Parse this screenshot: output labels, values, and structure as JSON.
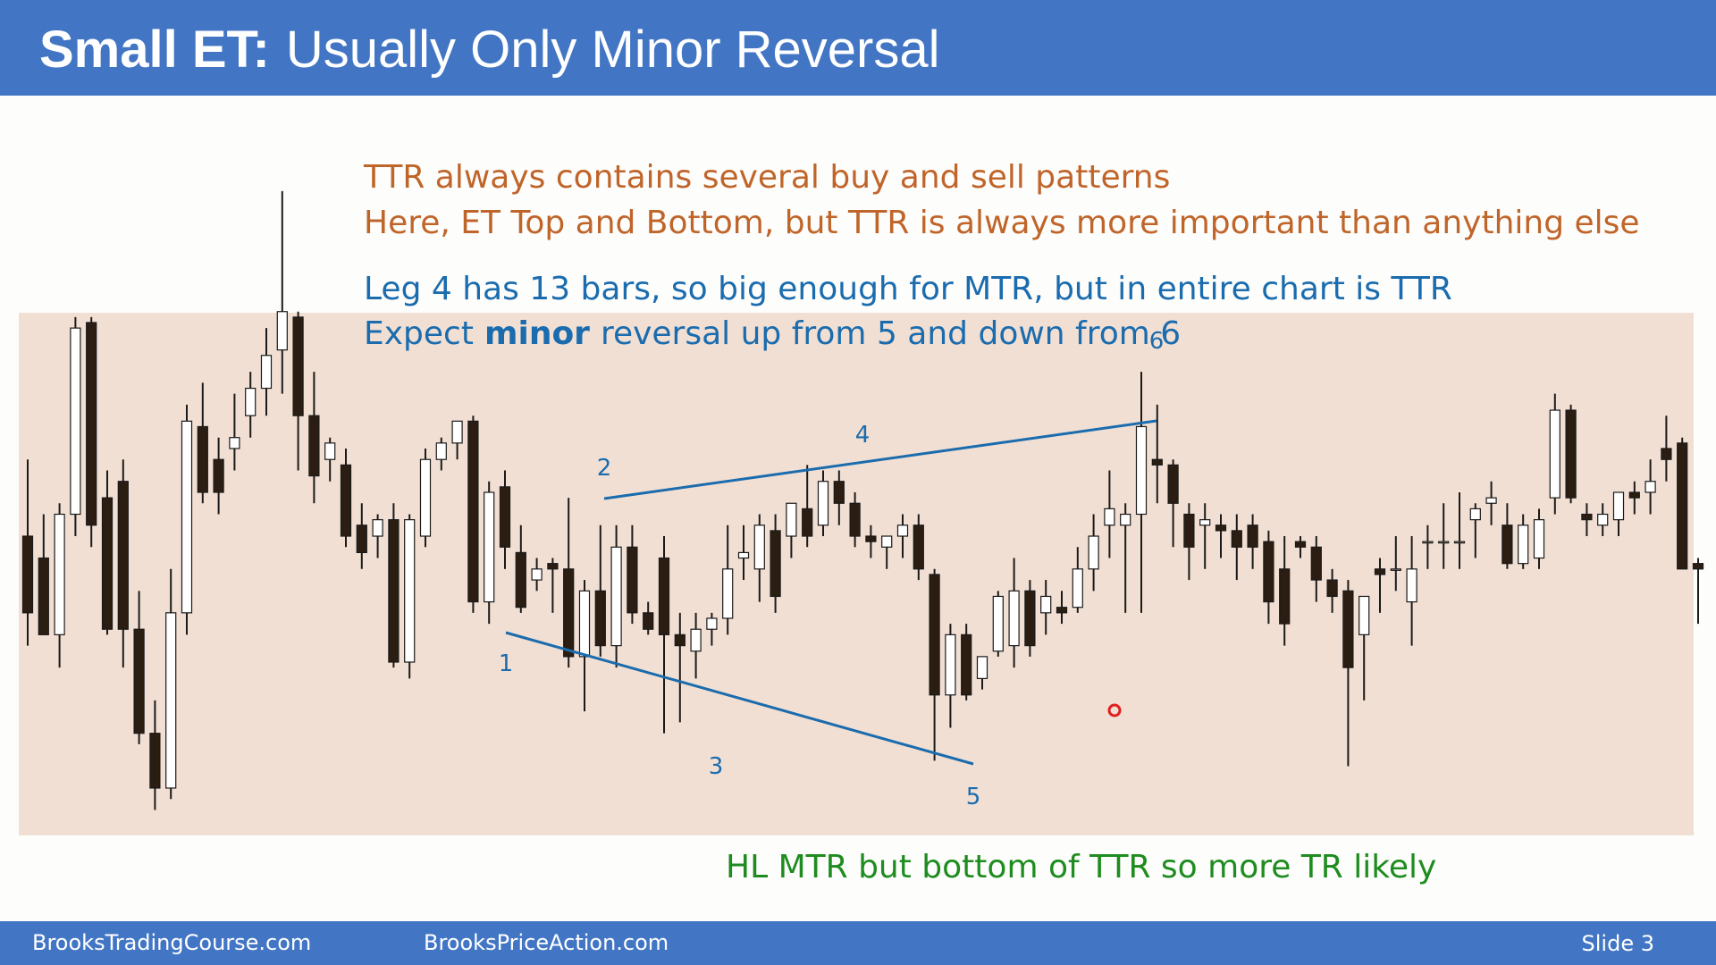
{
  "header": {
    "title_lead": "Small ET:",
    "title": "Usually Only Minor Reversal"
  },
  "notes": {
    "orange": [
      "TTR always contains several buy and sell patterns",
      "Here, ET Top and Bottom, but TTR is always more important than anything else"
    ],
    "blue_1": "Leg 4 has 13 bars, so big enough for MTR, but in entire chart is TTR",
    "blue_2": [
      "Expect",
      "minor",
      "reversal up from 5 and down from 6"
    ]
  },
  "labels": [
    "1",
    "2",
    "3",
    "4",
    "5",
    "6"
  ],
  "conclusion": "HL MTR but bottom of TTR so more TR likely",
  "footer": {
    "left": "BrooksTradingCourse.com",
    "middle": "BrooksPriceAction.com",
    "slide": "Slide 3"
  },
  "chart_data": {
    "type": "candlestick",
    "ylim": [
      0,
      620
    ],
    "color_up": "#ffffff",
    "color_down": "#2b1d12",
    "background": "#f2dfd3",
    "open": [
      270,
      250,
      180,
      290,
      465,
      305,
      320,
      185,
      90,
      40,
      200,
      370,
      340,
      350,
      380,
      405,
      440,
      470,
      380,
      340,
      335,
      280,
      270,
      285,
      155,
      270,
      340,
      355,
      375,
      210,
      315,
      255,
      230,
      245,
      240,
      160,
      220,
      170,
      260,
      200,
      250,
      180,
      165,
      185,
      195,
      250,
      240,
      275,
      270,
      295,
      280,
      320,
      300,
      270,
      260,
      270,
      280,
      235,
      125,
      180,
      140,
      165,
      170,
      220,
      200,
      205,
      205,
      240,
      280,
      280,
      290,
      340,
      335,
      290,
      280,
      280,
      275,
      280,
      265,
      240,
      265,
      260,
      230,
      220,
      180,
      240,
      240,
      210,
      265,
      265,
      265,
      285,
      300,
      280,
      245,
      250,
      305,
      385,
      290,
      280,
      285,
      310,
      310,
      350,
      355,
      245
    ],
    "high": [
      340,
      290,
      300,
      470,
      470,
      330,
      340,
      220,
      120,
      240,
      390,
      410,
      360,
      400,
      420,
      460,
      585,
      475,
      420,
      360,
      350,
      300,
      290,
      300,
      290,
      350,
      360,
      375,
      380,
      320,
      330,
      280,
      250,
      250,
      305,
      230,
      280,
      280,
      280,
      210,
      270,
      200,
      200,
      200,
      280,
      280,
      290,
      290,
      300,
      335,
      330,
      330,
      310,
      280,
      270,
      290,
      290,
      240,
      190,
      190,
      160,
      220,
      250,
      230,
      230,
      220,
      260,
      290,
      330,
      300,
      420,
      390,
      340,
      300,
      300,
      290,
      290,
      290,
      275,
      270,
      270,
      270,
      240,
      230,
      215,
      250,
      270,
      270,
      280,
      300,
      310,
      300,
      320,
      300,
      290,
      295,
      400,
      390,
      300,
      300,
      310,
      320,
      340,
      380,
      360,
      250
    ],
    "low": [
      170,
      180,
      150,
      270,
      260,
      180,
      150,
      80,
      20,
      30,
      180,
      300,
      290,
      330,
      360,
      380,
      400,
      330,
      300,
      320,
      260,
      240,
      250,
      150,
      140,
      260,
      330,
      340,
      200,
      190,
      240,
      200,
      220,
      200,
      150,
      110,
      160,
      150,
      190,
      180,
      90,
      100,
      140,
      170,
      180,
      230,
      210,
      200,
      250,
      260,
      270,
      280,
      260,
      250,
      240,
      250,
      230,
      65,
      95,
      120,
      130,
      160,
      150,
      160,
      180,
      190,
      200,
      220,
      250,
      200,
      200,
      300,
      260,
      230,
      240,
      250,
      230,
      240,
      190,
      170,
      250,
      210,
      200,
      60,
      120,
      200,
      220,
      170,
      240,
      240,
      240,
      250,
      280,
      240,
      240,
      240,
      290,
      300,
      270,
      270,
      270,
      290,
      290,
      320,
      240,
      190
    ],
    "close": [
      200,
      180,
      290,
      460,
      280,
      185,
      185,
      90,
      40,
      200,
      375,
      310,
      310,
      360,
      405,
      435,
      475,
      380,
      325,
      355,
      270,
      255,
      285,
      155,
      285,
      340,
      355,
      375,
      210,
      310,
      260,
      205,
      240,
      240,
      160,
      220,
      170,
      260,
      200,
      185,
      180,
      170,
      185,
      195,
      240,
      255,
      280,
      215,
      300,
      270,
      320,
      300,
      270,
      265,
      270,
      280,
      240,
      125,
      180,
      125,
      160,
      215,
      220,
      170,
      215,
      200,
      240,
      270,
      295,
      290,
      370,
      335,
      300,
      260,
      285,
      275,
      260,
      260,
      210,
      190,
      260,
      230,
      215,
      150,
      215,
      235,
      240,
      240,
      265,
      265,
      265,
      295,
      305,
      245,
      280,
      285,
      385,
      305,
      285,
      290,
      310,
      305,
      320,
      340,
      240,
      240
    ]
  }
}
